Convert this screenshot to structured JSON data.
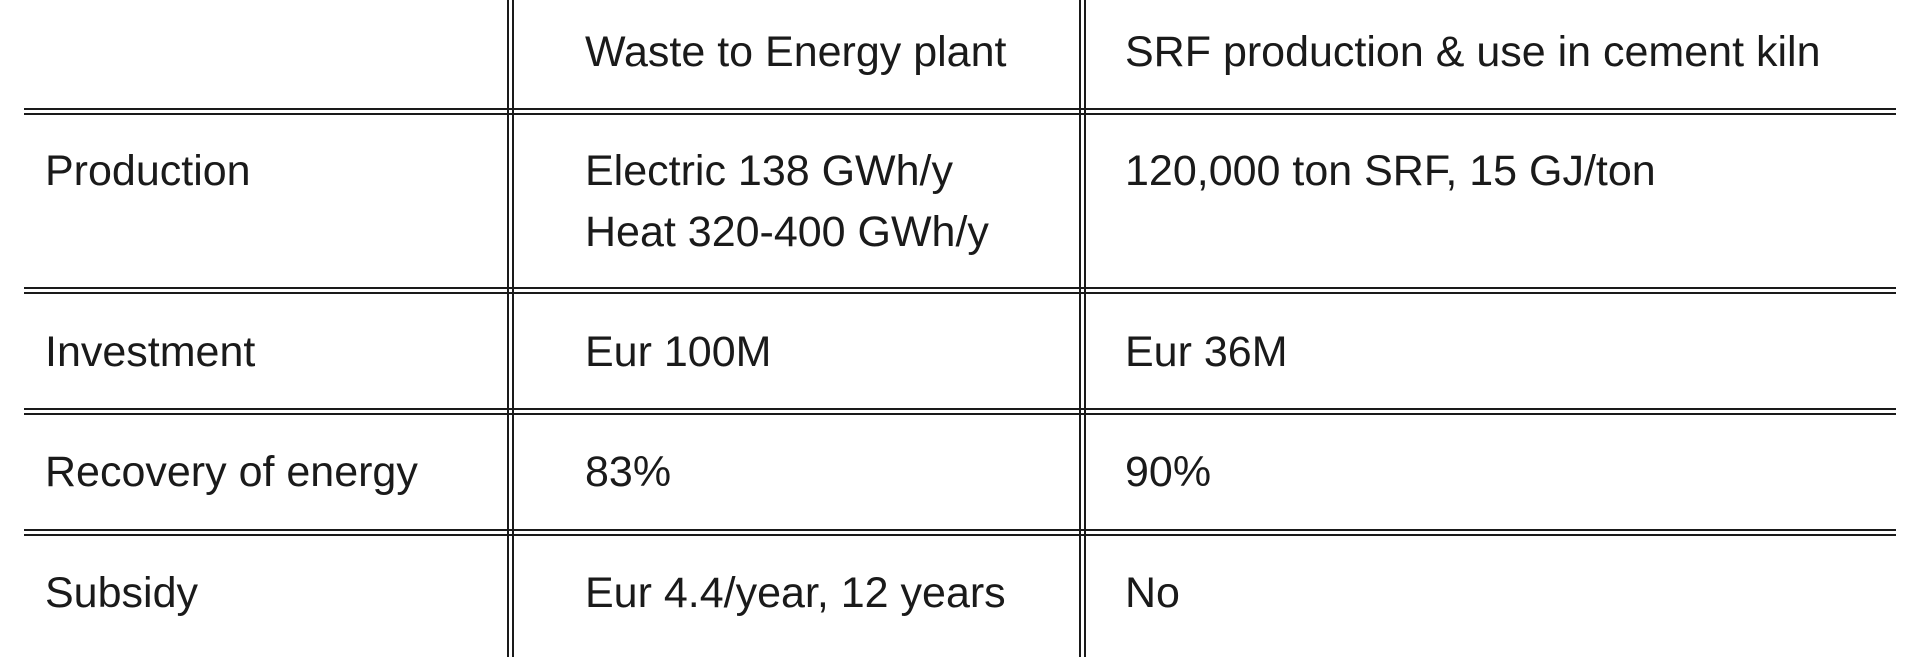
{
  "table": {
    "header": {
      "row_label": "",
      "col1": "Waste to Energy plant",
      "col2": "SRF production & use in cement kiln"
    },
    "rows": [
      {
        "label": "Production",
        "col1": [
          "Electric 138 GWh/y",
          "Heat 320-400 GWh/y"
        ],
        "col2": [
          "120,000 ton SRF, 15 GJ/ton"
        ]
      },
      {
        "label": "Investment",
        "col1": [
          "Eur 100M"
        ],
        "col2": [
          "Eur 36M"
        ]
      },
      {
        "label": "Recovery of energy",
        "col1": [
          "83%"
        ],
        "col2": [
          "90%"
        ]
      },
      {
        "label": "Subsidy",
        "col1": [
          "Eur 4.4/year, 12 years"
        ],
        "col2": [
          "No"
        ]
      }
    ]
  }
}
